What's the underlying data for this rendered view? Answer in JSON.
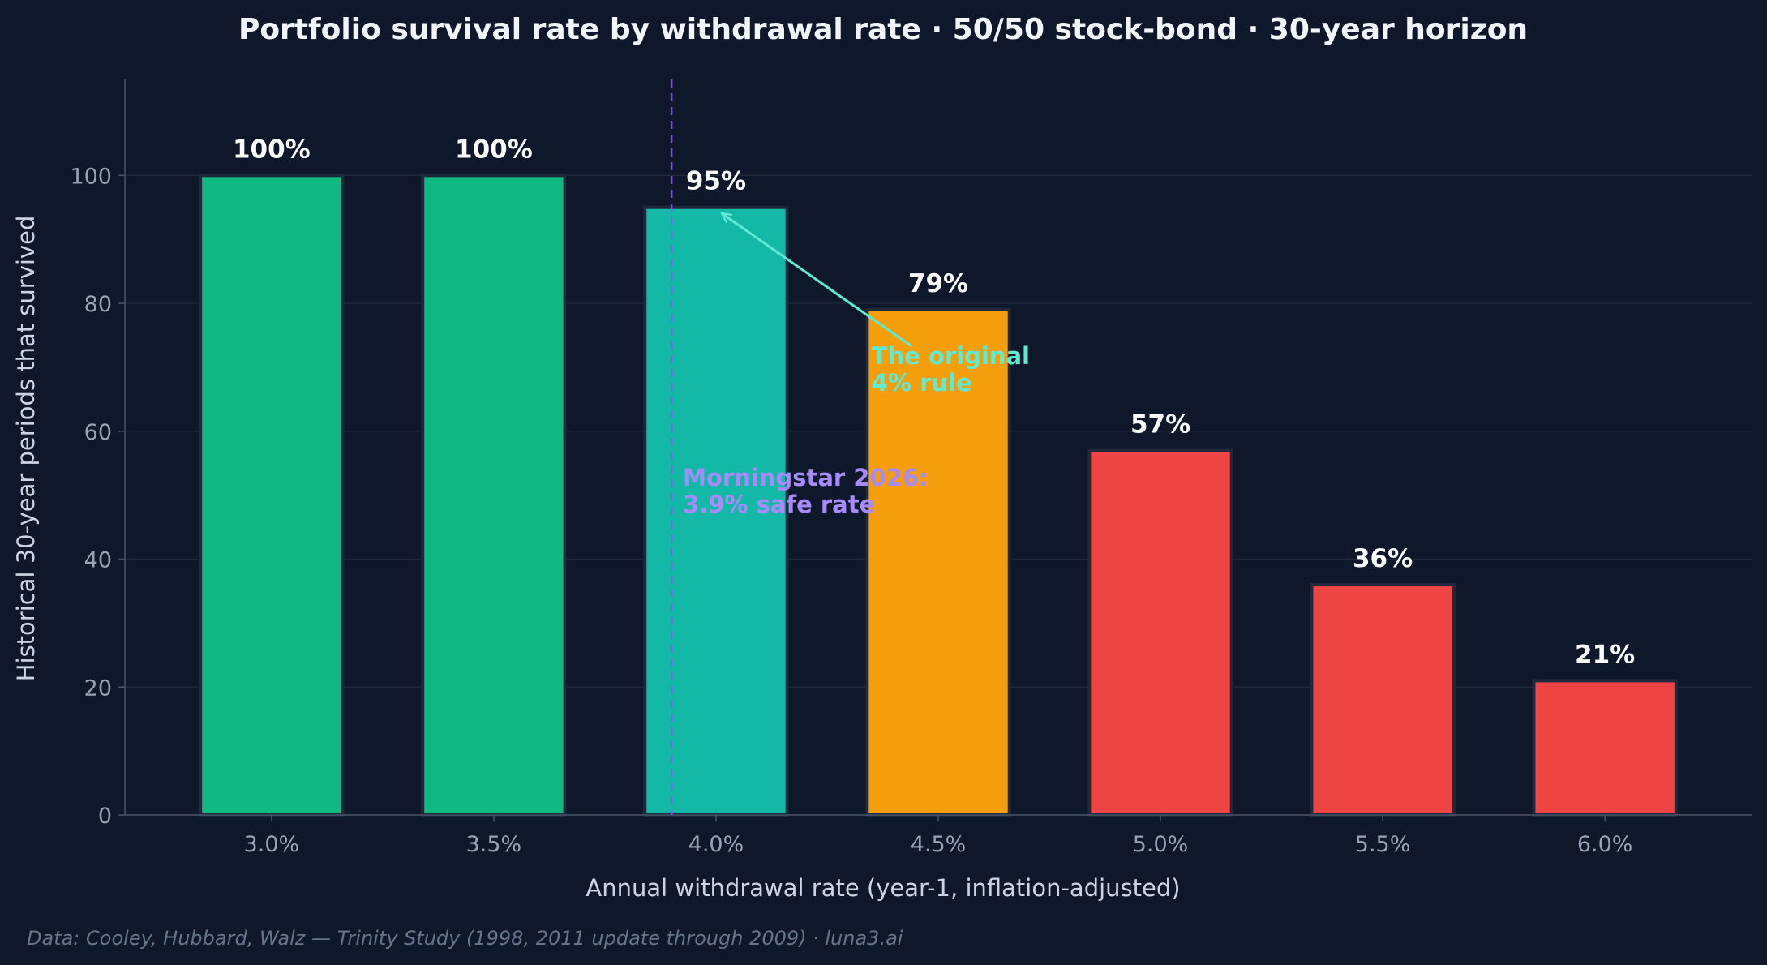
{
  "chart_data": {
    "type": "bar",
    "title": "Portfolio survival rate by withdrawal rate · 50/50 stock-bond · 30-year horizon",
    "xlabel": "Annual withdrawal rate (year-1, inflation-adjusted)",
    "ylabel": "Historical 30-year periods that survived",
    "categories": [
      "3.0%",
      "3.5%",
      "4.0%",
      "4.5%",
      "5.0%",
      "5.5%",
      "6.0%"
    ],
    "x_values": [
      3.0,
      3.5,
      4.0,
      4.5,
      5.0,
      5.5,
      6.0
    ],
    "values": [
      100,
      100,
      95,
      79,
      57,
      36,
      21
    ],
    "value_labels": [
      "100%",
      "100%",
      "95%",
      "79%",
      "57%",
      "36%",
      "21%"
    ],
    "bar_colors": [
      "#10b981",
      "#10b981",
      "#14b8a6",
      "#f59e0b",
      "#ef4444",
      "#ef4444",
      "#ef4444"
    ],
    "ylim": [
      0,
      115
    ],
    "yticks": [
      0,
      20,
      40,
      60,
      80,
      100
    ],
    "xlim": [
      2.67,
      6.33
    ],
    "grid": "horizontal",
    "reference_line": {
      "x": 3.9,
      "color": "#8b5cf6",
      "style": "dashed",
      "label_lines": [
        "Morningstar 2026:",
        "3.9% safe rate"
      ],
      "label_color": "#a78bfa"
    },
    "arrow_annotation": {
      "text_lines": [
        "The original",
        "4% rule"
      ],
      "color": "#5eead4",
      "points_to": {
        "x": 4.0,
        "y": 95
      }
    },
    "source": "Data: Cooley, Hubbard, Walz — Trinity Study (1998, 2011 update through 2009) · luna3.ai"
  }
}
